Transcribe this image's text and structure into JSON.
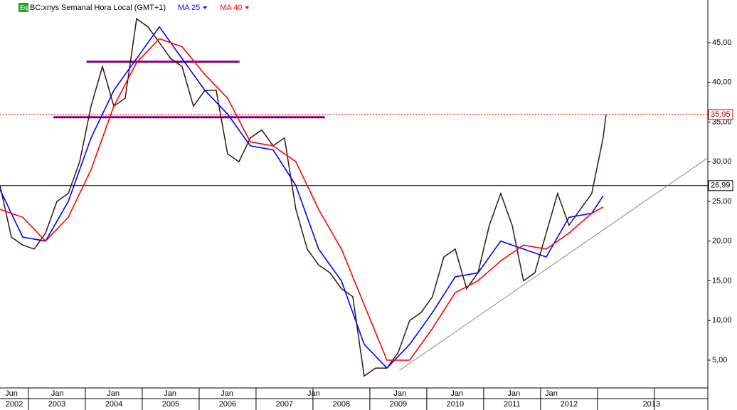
{
  "chart_data": {
    "type": "line",
    "title": "BC:xnys Semanal Hora Local (GMT+1)",
    "badge": "Eq",
    "xlim": [
      2002.5,
      2014.94
    ],
    "ylim": [
      1.5,
      50.38
    ],
    "yticks": [
      {
        "value": 5,
        "label": "5,00"
      },
      {
        "value": 10,
        "label": "10,00"
      },
      {
        "value": 15,
        "label": "15,00"
      },
      {
        "value": 20,
        "label": "20,00"
      },
      {
        "value": 25,
        "label": "25,00"
      },
      {
        "value": 30,
        "label": "30,00"
      },
      {
        "value": 35,
        "label": "35,00"
      },
      {
        "value": 40,
        "label": "40,00"
      },
      {
        "value": 45,
        "label": "45,00"
      }
    ],
    "xticks_top": [
      {
        "value": 2002.7,
        "label": "Jun"
      },
      {
        "value": 2003.51,
        "label": "Jan"
      },
      {
        "value": 2004.49,
        "label": "Jan"
      },
      {
        "value": 2005.49,
        "label": "Jan"
      },
      {
        "value": 2006.49,
        "label": "Jan"
      },
      {
        "value": 2008.01,
        "label": "Jan"
      },
      {
        "value": 2009.53,
        "label": "Jan"
      },
      {
        "value": 2010.53,
        "label": "Jan"
      },
      {
        "value": 2011.53,
        "label": "Jan"
      },
      {
        "value": 2012.19,
        "label": "Jan"
      }
    ],
    "xticks_bottom": [
      {
        "value": 2002.75,
        "label": "2002"
      },
      {
        "value": 2003.5,
        "label": "2003"
      },
      {
        "value": 2004.5,
        "label": "2004"
      },
      {
        "value": 2005.5,
        "label": "2005"
      },
      {
        "value": 2006.5,
        "label": "2006"
      },
      {
        "value": 2007.5,
        "label": "2007"
      },
      {
        "value": 2008.5,
        "label": "2008"
      },
      {
        "value": 2009.5,
        "label": "2009"
      },
      {
        "value": 2010.5,
        "label": "2010"
      },
      {
        "value": 2011.5,
        "label": "2011"
      },
      {
        "value": 2012.5,
        "label": "2012"
      },
      {
        "value": 2013.95,
        "label": "2013"
      }
    ],
    "series": [
      {
        "color": "#3a1010",
        "x": [
          2002.5,
          2002.7,
          2002.9,
          2003.1,
          2003.3,
          2003.5,
          2003.7,
          2003.9,
          2004.1,
          2004.3,
          2004.5,
          2004.7,
          2004.9,
          2005.1,
          2005.3,
          2005.5,
          2005.7,
          2005.9,
          2006.1,
          2006.3,
          2006.5,
          2006.7,
          2006.9,
          2007.1,
          2007.3,
          2007.5,
          2007.7,
          2007.9,
          2008.1,
          2008.3,
          2008.5,
          2008.7,
          2008.9,
          2009.1,
          2009.3,
          2009.5,
          2009.7,
          2009.9,
          2010.1,
          2010.3,
          2010.5,
          2010.7,
          2010.9,
          2011.1,
          2011.3,
          2011.5,
          2011.7,
          2011.9,
          2012.1,
          2012.3,
          2012.5,
          2012.7,
          2012.9,
          2013.1,
          2013.15
        ],
        "values": [
          27,
          20.5,
          19.5,
          19,
          21,
          25,
          26,
          30,
          37,
          42,
          37,
          38,
          48,
          47,
          45,
          43,
          42,
          37,
          39,
          39,
          31,
          30,
          33,
          34,
          32,
          33,
          24,
          19,
          17,
          16,
          14,
          13,
          3,
          4,
          4,
          6,
          10,
          11,
          13,
          18,
          19,
          14,
          16,
          22,
          26,
          22,
          15,
          16,
          21,
          26,
          22,
          24,
          26,
          33,
          35.9
        ]
      },
      {
        "name": "MA 25",
        "color": "#0000ff",
        "x": [
          2002.5,
          2002.9,
          2003.3,
          2003.7,
          2004.1,
          2004.5,
          2004.9,
          2005.3,
          2005.7,
          2006.1,
          2006.5,
          2006.9,
          2007.3,
          2007.7,
          2008.1,
          2008.5,
          2008.9,
          2009.3,
          2009.7,
          2010.1,
          2010.5,
          2010.9,
          2011.3,
          2011.7,
          2012.1,
          2012.5,
          2012.9,
          2013.1
        ],
        "values": [
          26.5,
          20.5,
          20,
          25,
          33,
          39,
          43,
          47,
          43,
          39,
          36,
          32,
          31.5,
          27,
          19,
          15,
          7,
          4,
          7,
          11,
          15.5,
          16,
          20,
          19,
          18,
          23,
          23.5,
          25.7
        ]
      },
      {
        "name": "MA 40",
        "color": "#ff0000",
        "x": [
          2002.5,
          2002.9,
          2003.3,
          2003.7,
          2004.1,
          2004.5,
          2004.9,
          2005.3,
          2005.7,
          2006.1,
          2006.5,
          2006.9,
          2007.3,
          2007.7,
          2008.1,
          2008.5,
          2008.9,
          2009.3,
          2009.7,
          2010.1,
          2010.5,
          2010.9,
          2011.3,
          2011.7,
          2012.1,
          2012.5,
          2012.9,
          2013.1
        ],
        "values": [
          24,
          23,
          20,
          23,
          29,
          37,
          42.5,
          45.5,
          44.5,
          41,
          38,
          32.5,
          32,
          30,
          24,
          19,
          12,
          5,
          5,
          9,
          13.5,
          15,
          17.5,
          19.5,
          19,
          21,
          23.5,
          24.3
        ]
      }
    ],
    "hlines": [
      {
        "value": 35.95,
        "label": "35,95",
        "color": "#cc0000",
        "dash": true
      },
      {
        "value": 26.99,
        "label": "26,99",
        "color": "#000000",
        "dash": false
      }
    ],
    "segments": [
      {
        "x": [
          2004.02,
          2006.71
        ],
        "y": [
          42.6,
          42.6
        ],
        "color": "#800080"
      },
      {
        "x": [
          2003.44,
          2008.21
        ],
        "y": [
          35.6,
          35.6
        ],
        "color": "#800080"
      },
      {
        "x": [
          2009.52,
          2014.94
        ],
        "y": [
          3.7,
          30.5
        ],
        "color": "#888888"
      }
    ]
  }
}
